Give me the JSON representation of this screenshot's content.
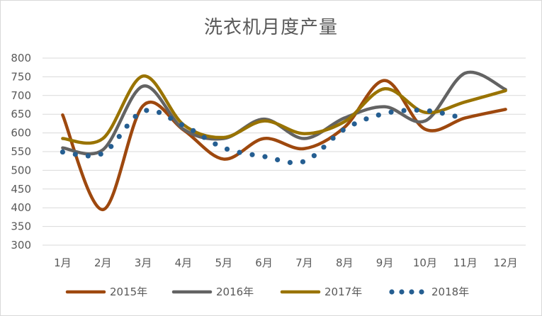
{
  "chart_data": {
    "type": "line",
    "title": "洗衣机月度产量",
    "categories": [
      "1月",
      "2月",
      "3月",
      "4月",
      "5月",
      "6月",
      "7月",
      "8月",
      "9月",
      "10月",
      "11月",
      "12月"
    ],
    "ylim": [
      300,
      800
    ],
    "yticks": [
      300,
      350,
      400,
      450,
      500,
      550,
      600,
      650,
      700,
      750,
      800
    ],
    "grid": true,
    "legend_position": "bottom",
    "smooth": true,
    "series": [
      {
        "name": "2015年",
        "color": "#9e480e",
        "style": "solid",
        "values": [
          648,
          395,
          673,
          608,
          530,
          585,
          558,
          615,
          740,
          610,
          640,
          663
        ]
      },
      {
        "name": "2016年",
        "color": "#636363",
        "style": "solid",
        "values": [
          560,
          555,
          725,
          610,
          585,
          637,
          585,
          640,
          670,
          632,
          760,
          716
        ]
      },
      {
        "name": "2017年",
        "color": "#997300",
        "style": "solid",
        "values": [
          585,
          585,
          752,
          622,
          588,
          632,
          598,
          630,
          718,
          655,
          683,
          713
        ]
      },
      {
        "name": "2018年",
        "color": "#255e91",
        "style": "dotted",
        "values": [
          549,
          546,
          658,
          620,
          560,
          537,
          524,
          610,
          652,
          660,
          638,
          null
        ]
      }
    ]
  }
}
